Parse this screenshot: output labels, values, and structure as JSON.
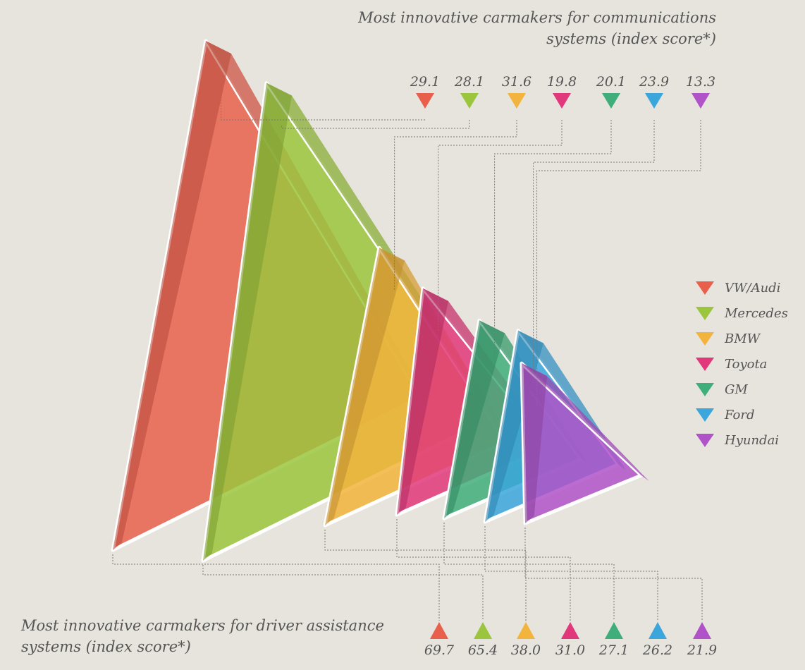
{
  "chart_data": {
    "type": "area",
    "top_title": "Most innovative carmakers for communications systems (index score*)",
    "bottom_title": "Most innovative carmakers for driver assistance systems (index score*)",
    "legend_position": "right",
    "series": [
      {
        "name": "VW/Audi",
        "communications": 29.1,
        "driver_assistance": 69.7,
        "color": "#e8604c"
      },
      {
        "name": "Mercedes",
        "communications": 28.1,
        "driver_assistance": 65.4,
        "color": "#9bc53d"
      },
      {
        "name": "BMW",
        "communications": 31.6,
        "driver_assistance": 38.0,
        "color": "#f2b43c"
      },
      {
        "name": "Toyota",
        "communications": 19.8,
        "driver_assistance": 31.0,
        "color": "#e0387a"
      },
      {
        "name": "GM",
        "communications": 20.1,
        "driver_assistance": 27.1,
        "color": "#3fae7a"
      },
      {
        "name": "Ford",
        "communications": 23.9,
        "driver_assistance": 26.2,
        "color": "#3ba6dc"
      },
      {
        "name": "Hyundai",
        "communications": 13.3,
        "driver_assistance": 21.9,
        "color": "#b052c8"
      }
    ]
  }
}
